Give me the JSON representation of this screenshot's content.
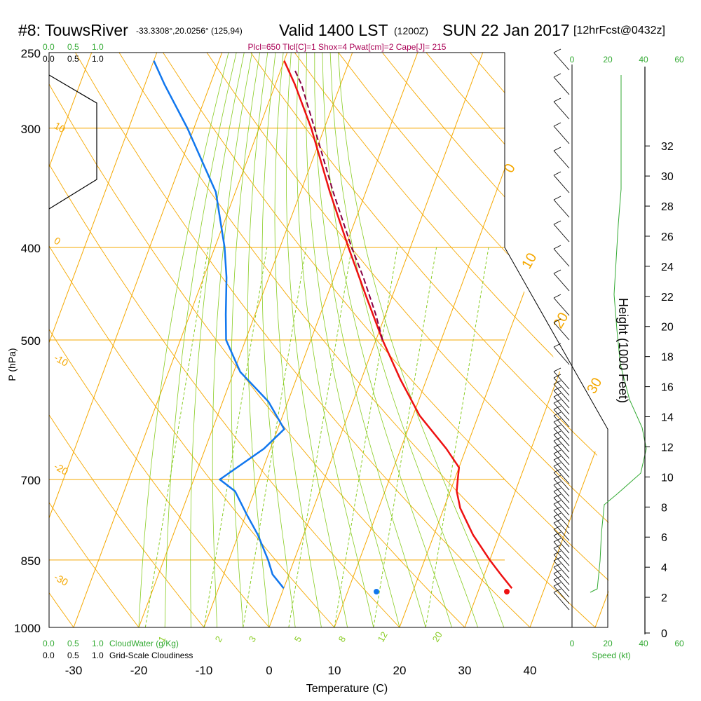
{
  "header": {
    "station": "#8: TouwsRiver",
    "coords": "-33.3308°,20.0256° (125,94)",
    "valid": "Valid 1400 LST",
    "zulu": "(1200Z)",
    "date": "SUN 22 Jan 2017",
    "fcst": "[12hrFcst@0432z]"
  },
  "indices": "Plcl=650 Tlcl[C]=1 Shox=4 Pwat[cm]=2 Cape[J]= 215",
  "colors": {
    "isotherm": "#f5a800",
    "dry_adiabat": "#f5a800",
    "moist_adiabat": "#88cc22",
    "mixing_ratio": "#88cc22",
    "temperature": "#ee1111",
    "dewpoint": "#1177ee",
    "parcel": "#880044",
    "cloud": "#33aa33",
    "wind_speed": "#33aa33"
  },
  "chart_data": {
    "type": "line",
    "title": "#8: TouwsRiver  Valid 1400 LST (1200Z) SUN 22 Jan 2017",
    "xlabel": "Temperature (C)",
    "ylabel": "P (hPa)",
    "y2label": "Height (1000 Feet)",
    "x_ticks": [
      -30,
      -20,
      -10,
      0,
      10,
      20,
      30,
      40
    ],
    "y_ticks": [
      250,
      300,
      400,
      500,
      700,
      850,
      1000
    ],
    "ylim": [
      1000,
      250
    ],
    "height_ticks": [
      0,
      2,
      4,
      6,
      8,
      10,
      12,
      14,
      16,
      18,
      20,
      22,
      24,
      26,
      28,
      30,
      32
    ],
    "series": [
      {
        "name": "temperature",
        "points": [
          [
            910,
            35.0
          ],
          [
            880,
            32.5
          ],
          [
            850,
            30.0
          ],
          [
            800,
            26.0
          ],
          [
            750,
            22.5
          ],
          [
            720,
            21.0
          ],
          [
            700,
            20.5
          ],
          [
            680,
            20.0
          ],
          [
            650,
            17.0
          ],
          [
            600,
            11.0
          ],
          [
            550,
            6.0
          ],
          [
            500,
            1.0
          ],
          [
            450,
            -4.0
          ],
          [
            400,
            -9.5
          ],
          [
            350,
            -15.5
          ],
          [
            300,
            -22.0
          ],
          [
            270,
            -27.0
          ],
          [
            255,
            -30.0
          ]
        ]
      },
      {
        "name": "dewpoint",
        "points": [
          [
            910,
            0.0
          ],
          [
            880,
            -2.5
          ],
          [
            850,
            -4.0
          ],
          [
            800,
            -7.0
          ],
          [
            760,
            -10.0
          ],
          [
            720,
            -13.0
          ],
          [
            700,
            -16.0
          ],
          [
            650,
            -11.0
          ],
          [
            620,
            -9.0
          ],
          [
            580,
            -13.0
          ],
          [
            540,
            -19.0
          ],
          [
            500,
            -23.0
          ],
          [
            470,
            -24.5
          ],
          [
            430,
            -26.5
          ],
          [
            400,
            -28.5
          ],
          [
            350,
            -33.0
          ],
          [
            300,
            -41.0
          ],
          [
            270,
            -47.0
          ],
          [
            255,
            -50.0
          ]
        ]
      },
      {
        "name": "parcel",
        "points": [
          [
            500,
            1.0
          ],
          [
            470,
            -1.5
          ],
          [
            430,
            -5.5
          ],
          [
            400,
            -9.0
          ],
          [
            350,
            -15.0
          ],
          [
            300,
            -21.5
          ],
          [
            270,
            -26.0
          ],
          [
            260,
            -28.0
          ]
        ]
      }
    ],
    "surface_points": {
      "temperature": 36.5,
      "dewpoint": 16.5
    },
    "isotherm_labels": [
      "0",
      "10",
      "20",
      "30",
      "10",
      "0",
      "-10",
      "-20",
      "-30"
    ],
    "mixing_ratio_labels": [
      "1",
      "2",
      "3",
      "5",
      "8",
      "12",
      "20"
    ],
    "axes": {
      "cloud_water_ticks": [
        "0.0",
        "0.5",
        "1.0"
      ],
      "cloudiness_ticks": [
        "0.0",
        "0.5",
        "1.0"
      ],
      "speed_ticks": [
        "0",
        "20",
        "40",
        "60"
      ]
    },
    "cloud_water_label": "CloudWater (g/Kg)",
    "cloudiness_label": "Grid-Scale Cloudiness",
    "speed_label": "Speed (kt)"
  }
}
